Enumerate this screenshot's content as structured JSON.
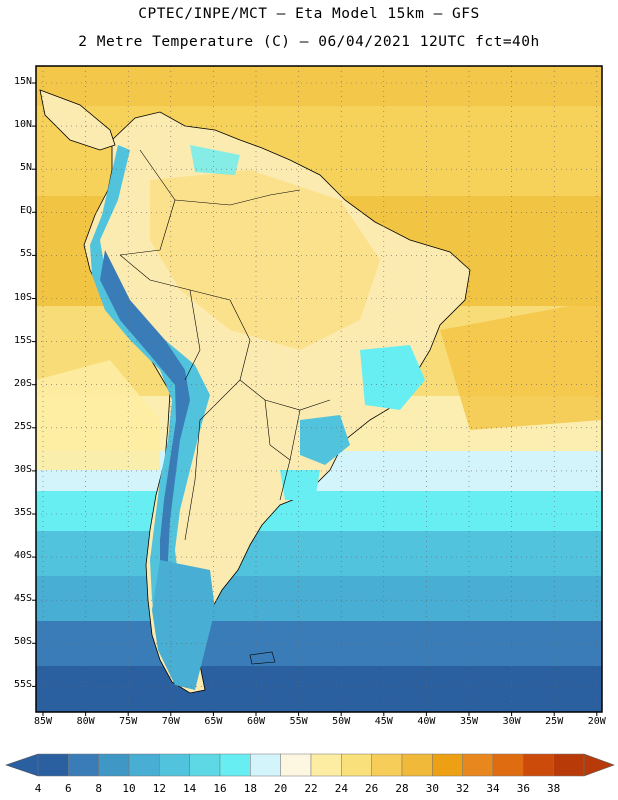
{
  "header": {
    "line1": "CPTEC/INPE/MCT –  Eta Model 15km – GFS",
    "line2": "2 Metre Temperature (C) – 06/04/2021 12UTC fct=40h"
  },
  "axes": {
    "lat_labels": [
      "15N",
      "10N",
      "5N",
      "EQ",
      "5S",
      "10S",
      "15S",
      "20S",
      "25S",
      "30S",
      "35S",
      "40S",
      "45S",
      "50S",
      "55S"
    ],
    "lon_labels": [
      "85W",
      "80W",
      "75W",
      "70W",
      "65W",
      "60W",
      "55W",
      "50W",
      "45W",
      "40W",
      "35W",
      "30W",
      "25W",
      "20W"
    ]
  },
  "colorbar": {
    "labels": [
      "4",
      "6",
      "8",
      "10",
      "12",
      "14",
      "16",
      "18",
      "20",
      "22",
      "24",
      "26",
      "28",
      "30",
      "32",
      "34",
      "36",
      "38"
    ],
    "colors": [
      "#2a5fa0",
      "#3a7cb8",
      "#3f97c6",
      "#48aed3",
      "#52c3dc",
      "#5fd8e6",
      "#66eef2",
      "#d4f4fb",
      "#fdf6e0",
      "#fdeda3",
      "#fae07a",
      "#f5cd58",
      "#f0b93a",
      "#eea014",
      "#e8871e",
      "#e06c12",
      "#cc4a0a",
      "#b83a08"
    ],
    "low_arrow_color": "#2a5fa0",
    "high_arrow_color": "#b83a08"
  },
  "map": {
    "ocean_north_color": "#f5d560",
    "ocean_south_color": "#2a5fa0",
    "grid": "dotted"
  }
}
